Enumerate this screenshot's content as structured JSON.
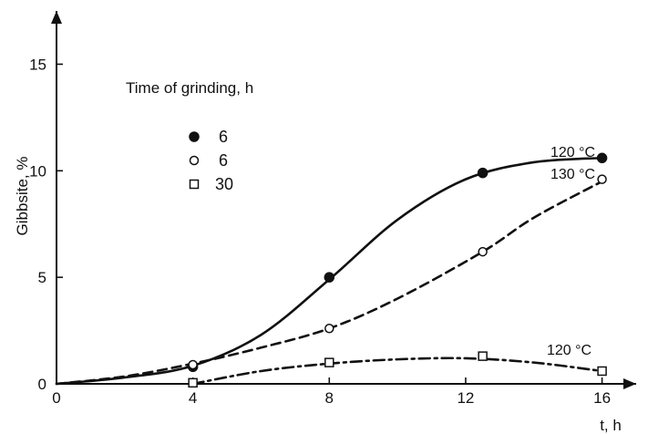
{
  "chart_data": {
    "type": "line",
    "xlabel": "t, h",
    "ylabel": "Gibbsite, %",
    "xlim": [
      0,
      17
    ],
    "ylim": [
      0,
      17.5
    ],
    "x_ticks": [
      0,
      4,
      8,
      12,
      16
    ],
    "x_tick_labels": [
      "0",
      "4",
      "8",
      "12",
      "16"
    ],
    "y_ticks": [
      0,
      5,
      10,
      15
    ],
    "y_tick_labels": [
      "0",
      "5",
      "10",
      "15"
    ],
    "grid": false,
    "legend_position": "top-left",
    "legend_title": "Time of grinding, h",
    "series": [
      {
        "name": "6",
        "marker": "filled-circle",
        "line_style": "solid",
        "curve_label": "120 °C",
        "points": [
          [
            4,
            0.8
          ],
          [
            8,
            5.0
          ],
          [
            12.5,
            9.9
          ],
          [
            16,
            10.6
          ]
        ],
        "curve": [
          [
            0,
            0
          ],
          [
            2,
            0.3
          ],
          [
            4,
            0.85
          ],
          [
            6,
            2.3
          ],
          [
            8,
            4.9
          ],
          [
            10,
            7.7
          ],
          [
            12,
            9.6
          ],
          [
            14,
            10.4
          ],
          [
            16,
            10.6
          ]
        ]
      },
      {
        "name": "6",
        "marker": "open-circle",
        "line_style": "dashed",
        "curve_label": "130 °C",
        "points": [
          [
            4,
            0.9
          ],
          [
            8,
            2.6
          ],
          [
            12.5,
            6.2
          ],
          [
            16,
            9.6
          ]
        ],
        "curve": [
          [
            0,
            0
          ],
          [
            2,
            0.35
          ],
          [
            4,
            0.95
          ],
          [
            6,
            1.7
          ],
          [
            8,
            2.6
          ],
          [
            10,
            4.0
          ],
          [
            12.5,
            6.2
          ],
          [
            14,
            7.8
          ],
          [
            16,
            9.5
          ]
        ]
      },
      {
        "name": "30",
        "marker": "open-square",
        "line_style": "dash-dot",
        "curve_label": "120 °C",
        "points": [
          [
            4,
            0.05
          ],
          [
            8,
            1.0
          ],
          [
            12.5,
            1.3
          ],
          [
            16,
            0.6
          ]
        ],
        "curve": [
          [
            4,
            0.0
          ],
          [
            6,
            0.6
          ],
          [
            8,
            0.95
          ],
          [
            10,
            1.15
          ],
          [
            12,
            1.2
          ],
          [
            14,
            1.0
          ],
          [
            16,
            0.6
          ]
        ]
      }
    ]
  }
}
